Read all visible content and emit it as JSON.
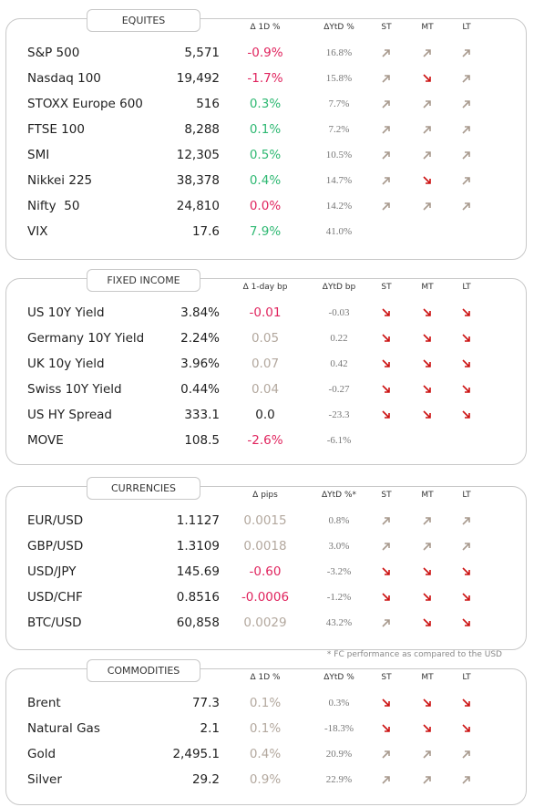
{
  "sections": [
    {
      "title": "EQUITES",
      "headers": [
        "Δ 1D %",
        "ΔYtD %",
        "ST",
        "MT",
        "LT"
      ],
      "rows": [
        {
          "name": "S&P 500",
          "value": "5,571",
          "change": "-0.9%",
          "ytd": "16.8%",
          "color": "#e0245e"
        },
        {
          "name": "Nasdaq 100",
          "value": "19,492",
          "change": "-1.7%",
          "ytd": "15.8%",
          "color": "#e0245e"
        },
        {
          "name": "STOXX Europe 600",
          "value": "516",
          "change": "0.3%",
          "ytd": "7.7%",
          "color": "#2eb872"
        },
        {
          "name": "FTSE 100",
          "value": "8,288",
          "change": "0.1%",
          "ytd": "7.2%",
          "color": "#2eb872"
        },
        {
          "name": "SMI",
          "value": "12,305",
          "change": "0.5%",
          "ytd": "10.5%",
          "color": "#2eb872"
        },
        {
          "name": "Nikkei 225",
          "value": "38,378",
          "change": "0.4%",
          "ytd": "14.7%",
          "color": "#2eb872"
        },
        {
          "name": "Nifty  50",
          "value": "24,810",
          "change": "0.0%",
          "ytd": "14.2%",
          "color": "#e0245e"
        },
        {
          "name": "VIX",
          "value": "17.6",
          "change": "7.9%",
          "ytd": "41.0%",
          "color": "#2eb872"
        }
      ]
    },
    {
      "title": "FIXED INCOME",
      "headers": [
        "Δ 1-day bp",
        "ΔYtD bp",
        "ST",
        "MT",
        "LT"
      ],
      "rows": [
        {
          "name": "US 10Y Yield",
          "value": "3.84%",
          "change": "-0.01",
          "ytd": "-0.03",
          "color": "#e0245e"
        },
        {
          "name": "Germany 10Y Yield",
          "value": "2.24%",
          "change": "0.05",
          "ytd": "0.22",
          "color": "#b3a89e"
        },
        {
          "name": "UK 10y Yield",
          "value": "3.96%",
          "change": "0.07",
          "ytd": "0.42",
          "color": "#b3a89e"
        },
        {
          "name": "Swiss 10Y Yield",
          "value": "0.44%",
          "change": "0.04",
          "ytd": "-0.27",
          "color": "#b3a89e"
        },
        {
          "name": "US HY Spread",
          "value": "333.1",
          "change": "0.0",
          "ytd": "-23.3",
          "color": "#222222"
        },
        {
          "name": "MOVE",
          "value": "108.5",
          "change": "-2.6%",
          "ytd": "-6.1%",
          "color": "#e0245e"
        }
      ]
    },
    {
      "title": "CURRENCIES",
      "headers": [
        "Δ pips",
        "ΔYtD %*",
        "ST",
        "MT",
        "LT"
      ],
      "rows": [
        {
          "name": "EUR/USD",
          "value": "1.1127",
          "change": "0.0015",
          "ytd": "0.8%",
          "color": "#b3a89e"
        },
        {
          "name": "GBP/USD",
          "value": "1.3109",
          "change": "0.0018",
          "ytd": "3.0%",
          "color": "#b3a89e"
        },
        {
          "name": "USD/JPY",
          "value": "145.69",
          "change": "-0.60",
          "ytd": "-3.2%",
          "color": "#e0245e"
        },
        {
          "name": "USD/CHF",
          "value": "0.8516",
          "change": "-0.0006",
          "ytd": "-1.2%",
          "color": "#e0245e"
        },
        {
          "name": "BTC/USD",
          "value": "60,858",
          "change": "0.0029",
          "ytd": "43.2%",
          "color": "#b3a89e"
        }
      ]
    },
    {
      "title": "COMMODITIES",
      "headers": [
        "Δ 1D %",
        "ΔYtD %",
        "ST",
        "MT",
        "LT"
      ],
      "rows": [
        {
          "name": "Brent",
          "value": "77.3",
          "change": "0.1%",
          "ytd": "0.3%",
          "color": "#b3a89e"
        },
        {
          "name": "Natural Gas",
          "value": "2.1",
          "change": "0.1%",
          "ytd": "-18.3%",
          "color": "#b3a89e"
        },
        {
          "name": "Gold",
          "value": "2,495.1",
          "change": "0.4%",
          "ytd": "20.9%",
          "color": "#b3a89e"
        },
        {
          "name": "Silver",
          "value": "29.2",
          "change": "0.9%",
          "ytd": "22.9%",
          "color": "#b3a89e"
        }
      ]
    }
  ],
  "footnote": "* FC performance as compared to the USD"
}
